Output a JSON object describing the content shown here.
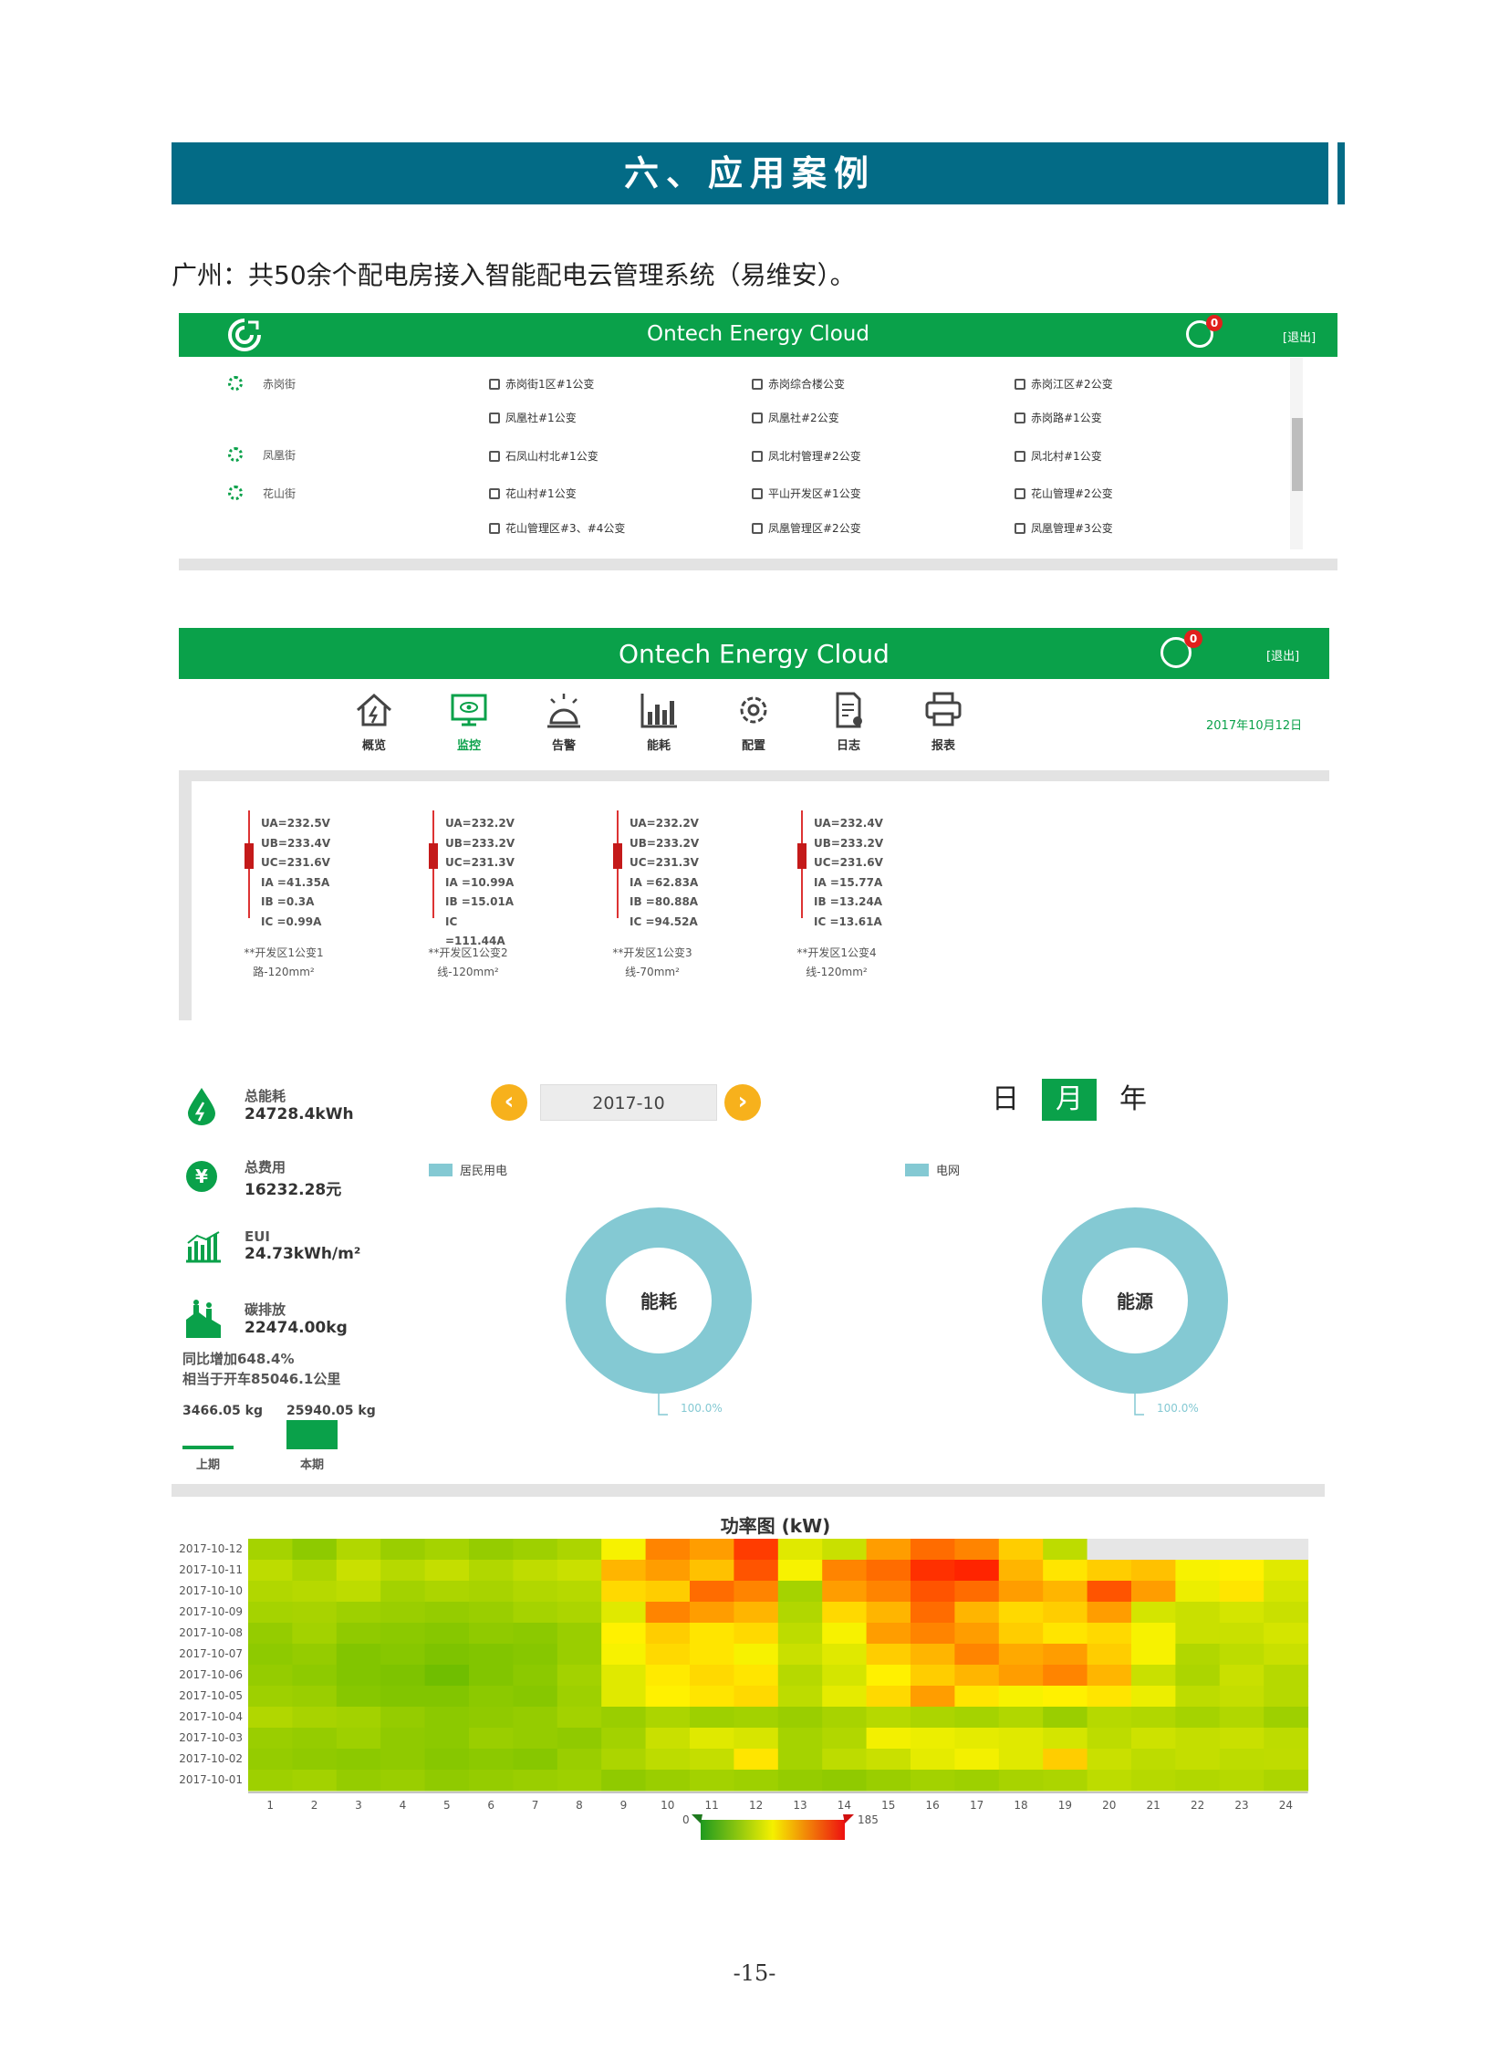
{
  "section": {
    "title": "六、应用案例"
  },
  "intro": "广州：共50余个配电房接入智能配电云管理系统（易维安）。",
  "app": {
    "brand": "Ontech Energy Cloud",
    "alerts": "0",
    "logout": "[退出]",
    "regions": [
      "赤岗街",
      "凤凰街",
      "花山街"
    ],
    "substations": [
      [
        "赤岗街1区#1公变",
        "赤岗综合楼公变",
        "赤岗江区#2公变"
      ],
      [
        "凤凰社#1公变",
        "凤凰社#2公变",
        "赤岗路#1公变"
      ],
      [
        "石凤山村北#1公变",
        "凤北村管理#2公变",
        "凤北村#1公变"
      ],
      [
        "花山村#1公变",
        "平山开发区#1公变",
        "花山管理#2公变"
      ],
      [
        "花山管理区#3、#4公变",
        "凤凰管理区#2公变",
        "凤凰管理#3公变"
      ]
    ]
  },
  "nav": {
    "items": [
      "概览",
      "监控",
      "告警",
      "能耗",
      "配置",
      "日志",
      "报表"
    ],
    "active": "监控",
    "date": "2017年10月12日"
  },
  "meters": [
    {
      "ua": "U<sub>A</sub>=232.5V",
      "lines": [
        "UA=232.5V",
        "UB=233.4V",
        "UC=231.6V",
        "IA =41.35A",
        "IB =0.3A",
        "IC =0.99A"
      ],
      "name": "**开发区1公变1",
      "cable": "路-120mm²"
    },
    {
      "lines": [
        "UA=232.2V",
        "UB=233.2V",
        "UC=231.3V",
        "IA =10.99A",
        "IB =15.01A",
        "IC =111.44A"
      ],
      "name": "**开发区1公变2",
      "cable": "线-120mm²"
    },
    {
      "lines": [
        "UA=232.2V",
        "UB=233.2V",
        "UC=231.3V",
        "IA =62.83A",
        "IB =80.88A",
        "IC =94.52A"
      ],
      "name": "**开发区1公变3",
      "cable": "线-70mm²"
    },
    {
      "lines": [
        "UA=232.4V",
        "UB=233.2V",
        "UC=231.6V",
        "IA =15.77A",
        "IB =13.24A",
        "IC =13.61A"
      ],
      "name": "**开发区1公变4",
      "cable": "线-120mm²"
    }
  ],
  "energy": {
    "total_label": "总能耗",
    "total_value": "24728.4kWh",
    "cost_label": "总费用",
    "cost_value": "16232.28元",
    "eui_label": "EUI",
    "eui_value": "24.73kWh/m²",
    "carbon_label": "碳排放",
    "carbon_value": "22474.00kg",
    "yoy": "同比增加648.4%",
    "equiv": "相当于开车85046.1公里",
    "prev_value": "3466.05 kg",
    "curr_value": "25940.05 kg",
    "prev_label": "上期",
    "curr_label": "本期",
    "period": "2017-10",
    "modes": [
      "日",
      "月",
      "年"
    ],
    "active_mode": "月",
    "donut1_legend": "居民用电",
    "donut1_center": "能耗",
    "donut1_pct": "100.0%",
    "donut2_legend": "电网",
    "donut2_center": "能源",
    "donut2_pct": "100.0%",
    "donut_color": "#84c9d3"
  },
  "chart_data": {
    "type": "heatmap",
    "title": "功率图 (kW)",
    "y": [
      "2017-10-12",
      "2017-10-11",
      "2017-10-10",
      "2017-10-09",
      "2017-10-08",
      "2017-10-07",
      "2017-10-06",
      "2017-10-05",
      "2017-10-04",
      "2017-10-03",
      "2017-10-02",
      "2017-10-01"
    ],
    "x": [
      "1",
      "2",
      "3",
      "4",
      "5",
      "6",
      "7",
      "8",
      "9",
      "10",
      "11",
      "12",
      "13",
      "14",
      "15",
      "16",
      "17",
      "18",
      "19",
      "20",
      "21",
      "22",
      "23",
      "24"
    ],
    "scale_min": "0",
    "scale_max": "185",
    "values": [
      [
        45,
        35,
        50,
        40,
        45,
        38,
        42,
        48,
        80,
        130,
        120,
        160,
        70,
        60,
        120,
        140,
        130,
        100,
        55,
        null,
        null,
        null,
        null,
        null
      ],
      [
        55,
        48,
        60,
        52,
        58,
        50,
        56,
        60,
        110,
        120,
        105,
        150,
        80,
        130,
        140,
        165,
        170,
        110,
        90,
        100,
        105,
        80,
        85,
        70
      ],
      [
        50,
        52,
        55,
        44,
        48,
        46,
        50,
        52,
        95,
        100,
        140,
        130,
        45,
        120,
        130,
        150,
        140,
        120,
        110,
        150,
        120,
        75,
        90,
        65
      ],
      [
        45,
        46,
        42,
        40,
        38,
        40,
        45,
        48,
        70,
        130,
        120,
        110,
        50,
        95,
        110,
        140,
        110,
        95,
        100,
        120,
        65,
        60,
        65,
        60
      ],
      [
        38,
        44,
        36,
        34,
        32,
        36,
        34,
        40,
        85,
        100,
        90,
        95,
        55,
        80,
        120,
        130,
        120,
        100,
        90,
        95,
        80,
        60,
        60,
        65
      ],
      [
        35,
        38,
        30,
        32,
        28,
        30,
        32,
        40,
        80,
        95,
        90,
        80,
        60,
        70,
        100,
        110,
        130,
        115,
        120,
        100,
        80,
        50,
        55,
        60
      ],
      [
        38,
        35,
        30,
        28,
        22,
        30,
        34,
        44,
        70,
        88,
        95,
        90,
        52,
        65,
        85,
        100,
        110,
        120,
        130,
        110,
        60,
        48,
        60,
        52
      ],
      [
        42,
        40,
        32,
        30,
        30,
        34,
        32,
        42,
        70,
        85,
        90,
        95,
        55,
        72,
        95,
        120,
        90,
        80,
        85,
        90,
        75,
        55,
        58,
        52
      ],
      [
        50,
        46,
        44,
        38,
        34,
        36,
        38,
        44,
        40,
        48,
        42,
        44,
        40,
        46,
        52,
        48,
        45,
        50,
        40,
        52,
        50,
        45,
        50,
        42
      ],
      [
        40,
        38,
        42,
        36,
        34,
        40,
        38,
        36,
        44,
        60,
        70,
        66,
        45,
        50,
        78,
        75,
        72,
        70,
        65,
        55,
        62,
        58,
        60,
        55
      ],
      [
        38,
        36,
        34,
        36,
        32,
        34,
        32,
        40,
        48,
        55,
        58,
        90,
        45,
        55,
        60,
        72,
        78,
        70,
        100,
        60,
        55,
        58,
        55,
        56
      ],
      [
        42,
        44,
        38,
        40,
        36,
        38,
        40,
        42,
        36,
        40,
        44,
        42,
        38,
        36,
        40,
        44,
        42,
        46,
        48,
        55,
        52,
        50,
        52,
        48
      ]
    ]
  },
  "page_number": "-15-"
}
